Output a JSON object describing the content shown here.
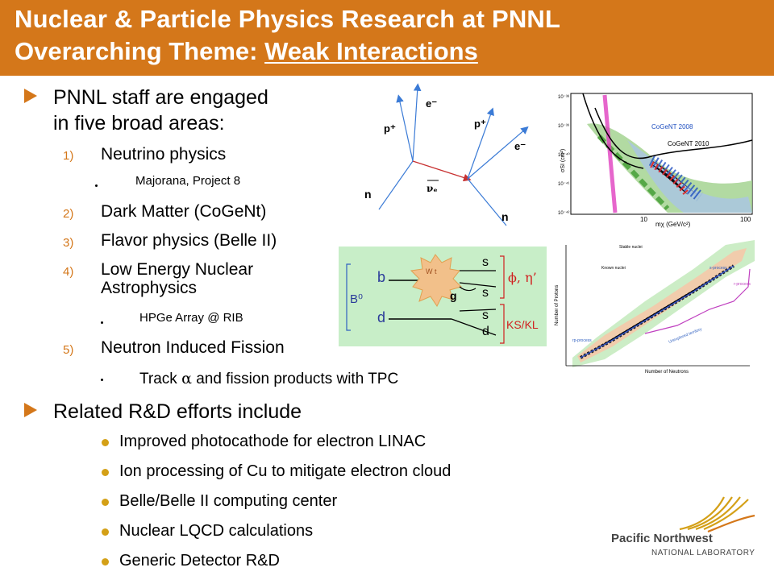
{
  "header": {
    "title": "Nuclear & Particle Physics Research at PNNL",
    "subtitle_prefix": "Overarching Theme: ",
    "subtitle_link": "Weak Interactions"
  },
  "bullets": {
    "b1_line1": "PNNL staff are engaged",
    "b1_line2": "in five broad areas:",
    "areas": [
      {
        "num": "1)",
        "label": "Neutrino physics",
        "sub": "Majorana, Project 8"
      },
      {
        "num": "2)",
        "label": "Dark Matter  (CoGeNt)"
      },
      {
        "num": "3)",
        "label": "Flavor physics (Belle II)"
      },
      {
        "num": "4)",
        "label_line1": "Low Energy Nuclear",
        "label_line2": "Astrophysics",
        "sub": "HPGe Array @ RIB"
      },
      {
        "num": "5)",
        "label": "Neutron Induced Fission",
        "sub_prefix": "Track ",
        "sub_symbol": "α",
        "sub_suffix": " and fission products with TPC"
      }
    ],
    "b2": "Related R&D efforts include",
    "rd": [
      "Improved photocathode for electron LINAC",
      "Ion processing of Cu to mitigate electron cloud",
      "Belle/Belle II computing center",
      "Nuclear LQCD calculations",
      "Generic Detector R&D"
    ]
  },
  "feynman": {
    "e_left": "e⁻",
    "p_left": "p⁺",
    "n_left": "n",
    "nu": "νₑ",
    "p_right": "p⁺",
    "e_right": "e⁻",
    "n_right": "n"
  },
  "darkmatter_plot": {
    "ylabel": "σSI (cm²)",
    "xlabel": "mχ (GeV/c²)",
    "legend1": "CoGeNT 2008",
    "legend2": "CoGeNT 2010",
    "yticks": [
      "10⁻³⁸",
      "10⁻³⁹",
      "10⁻⁴⁰",
      "10⁻⁴¹",
      "10⁻⁴²"
    ],
    "xticks": [
      "10",
      "100"
    ]
  },
  "belle_diagram": {
    "b0": "B⁰",
    "b": "b",
    "d": "d",
    "s1": "s",
    "s2": "s",
    "s3": "s",
    "d2": "d",
    "g": "g",
    "phi": "ϕ, η’",
    "ks": "KS/KL",
    "loop": "W t"
  },
  "nuclide_chart": {
    "ylabel": "Number of Protons",
    "xlabel": "Number of Neutrons",
    "stable": "Stable nuclei",
    "known": "Known nuclei",
    "rp": "rp-process",
    "r": "r-process",
    "s": "s-process",
    "unknown": "Unexplored territory"
  },
  "logo": {
    "line1": "Pacific Northwest",
    "line2": "NATIONAL LABORATORY"
  },
  "colors": {
    "accent": "#d4771a",
    "bullet_dot": "#d4a017"
  }
}
